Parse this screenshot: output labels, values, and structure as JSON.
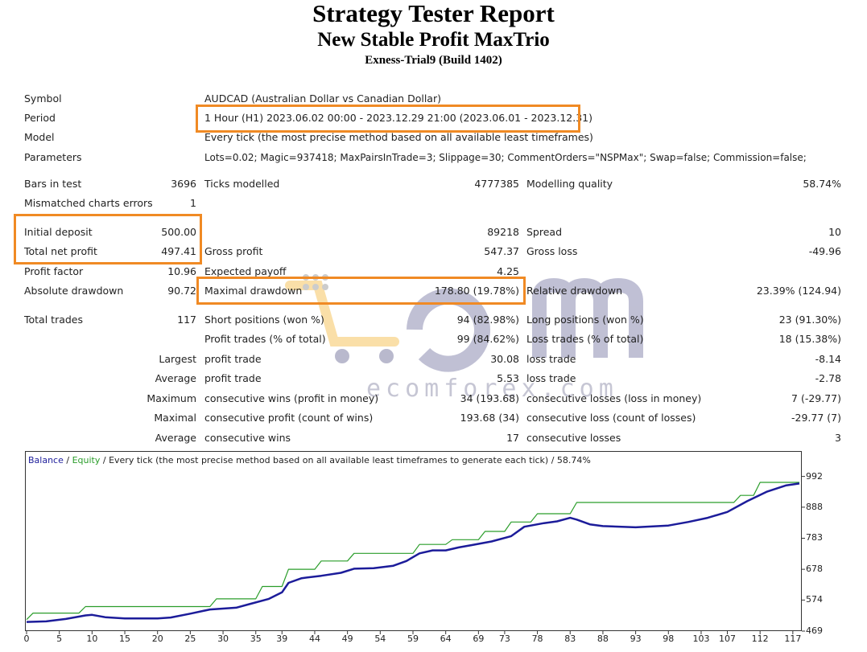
{
  "header": {
    "title": "Strategy Tester Report",
    "subtitle": "New Stable Profit MaxTrio",
    "account": "Exness-Trial9 (Build 1402)"
  },
  "info": {
    "symbol_label": "Symbol",
    "symbol_value": "AUDCAD (Australian Dollar vs Canadian Dollar)",
    "period_label": "Period",
    "period_value": "1 Hour (H1) 2023.06.02 00:00 - 2023.12.29 21:00 (2023.06.01 - 2023.12.31)",
    "model_label": "Model",
    "model_value": "Every tick (the most precise method based on all available least timeframes)",
    "parameters_label": "Parameters",
    "parameters_value": "Lots=0.02; Magic=937418; MaxPairsInTrade=3; Slippage=30; CommentOrders=\"NSPMax\"; Swap=false; Commission=false;"
  },
  "stats": {
    "bars_label": "Bars in test",
    "bars_value": "3696",
    "ticks_label": "Ticks modelled",
    "ticks_value": "4777385",
    "quality_label": "Modelling quality",
    "quality_value": "58.74%",
    "mismatch_label": "Mismatched charts errors",
    "mismatch_value": "1",
    "deposit_label": "Initial deposit",
    "deposit_value": "500.00",
    "mid_value": "89218",
    "spread_label": "Spread",
    "spread_value": "10",
    "netprofit_label": "Total net profit",
    "netprofit_value": "497.41",
    "grossprofit_label": "Gross profit",
    "grossprofit_value": "547.37",
    "grossloss_label": "Gross loss",
    "grossloss_value": "-49.96",
    "pf_label": "Profit factor",
    "pf_value": "10.96",
    "payoff_label": "Expected payoff",
    "payoff_value": "4.25",
    "absdd_label": "Absolute drawdown",
    "absdd_value": "90.72",
    "maxdd_label": "Maximal drawdown",
    "maxdd_value": "178.80 (19.78%)",
    "reldd_label": "Relative drawdown",
    "reldd_value": "23.39% (124.94)",
    "trades_label": "Total trades",
    "trades_value": "117",
    "short_label": "Short positions (won %)",
    "short_value": "94 (82.98%)",
    "long_label": "Long positions (won %)",
    "long_value": "23 (91.30%)",
    "proftrades_label": "Profit trades (% of total)",
    "proftrades_value": "99 (84.62%)",
    "losstrades_label": "Loss trades (% of total)",
    "losstrades_value": "18 (15.38%)",
    "largest_label": "Largest",
    "largest_profit_label": "profit trade",
    "largest_profit_value": "30.08",
    "largest_loss_label": "loss trade",
    "largest_loss_value": "-8.14",
    "average_label": "Average",
    "average_profit_label": "profit trade",
    "average_profit_value": "5.53",
    "average_loss_label": "loss trade",
    "average_loss_value": "-2.78",
    "maximum_label": "Maximum",
    "max_wins_label": "consecutive wins (profit in money)",
    "max_wins_value": "34 (193.68)",
    "max_losses_label": "consecutive losses (loss in money)",
    "max_losses_value": "7 (-29.77)",
    "maximal_label": "Maximal",
    "maximal_profit_label": "consecutive profit (count of wins)",
    "maximal_profit_value": "193.68 (34)",
    "maximal_loss_label": "consecutive loss (count of losses)",
    "maximal_loss_value": "-29.77 (7)",
    "avg2_label": "Average",
    "avg_wins_label": "consecutive wins",
    "avg_wins_value": "17",
    "avg_losses_label": "consecutive losses",
    "avg_losses_value": "3"
  },
  "watermark": {
    "text": "ecomforex.com"
  },
  "chart_caption": {
    "balance": "Balance",
    "sep1": " / ",
    "equity": "Equity",
    "rest": " / Every tick (the most precise method based on all available least timeframes to generate each tick) / 58.74%"
  },
  "colors": {
    "highlight": "#f08a24",
    "balance": "#1c1c9a",
    "equity": "#2a9d2a"
  },
  "chart_data": {
    "type": "line",
    "title": "",
    "xlabel": "",
    "ylabel": "",
    "x_ticks": [
      0,
      5,
      10,
      15,
      20,
      25,
      30,
      35,
      39,
      44,
      49,
      54,
      59,
      64,
      69,
      73,
      78,
      83,
      88,
      93,
      98,
      103,
      107,
      112,
      117
    ],
    "y_ticks": [
      469,
      574,
      678,
      783,
      888,
      992
    ],
    "xlim": [
      0,
      118
    ],
    "ylim": [
      469,
      1010
    ],
    "series": [
      {
        "name": "Balance",
        "points": [
          [
            0,
            500
          ],
          [
            3,
            502
          ],
          [
            6,
            510
          ],
          [
            9,
            522
          ],
          [
            10,
            524
          ],
          [
            12,
            516
          ],
          [
            15,
            512
          ],
          [
            20,
            512
          ],
          [
            22,
            515
          ],
          [
            25,
            528
          ],
          [
            28,
            542
          ],
          [
            32,
            548
          ],
          [
            34,
            560
          ],
          [
            37,
            578
          ],
          [
            39,
            600
          ],
          [
            40,
            632
          ],
          [
            42,
            648
          ],
          [
            45,
            656
          ],
          [
            48,
            666
          ],
          [
            50,
            680
          ],
          [
            53,
            682
          ],
          [
            56,
            690
          ],
          [
            58,
            706
          ],
          [
            60,
            732
          ],
          [
            62,
            742
          ],
          [
            64,
            742
          ],
          [
            66,
            752
          ],
          [
            68,
            760
          ],
          [
            71,
            772
          ],
          [
            74,
            790
          ],
          [
            76,
            822
          ],
          [
            79,
            834
          ],
          [
            81,
            840
          ],
          [
            83,
            852
          ],
          [
            84,
            846
          ],
          [
            86,
            830
          ],
          [
            88,
            824
          ],
          [
            93,
            820
          ],
          [
            98,
            826
          ],
          [
            101,
            838
          ],
          [
            104,
            852
          ],
          [
            107,
            872
          ],
          [
            110,
            908
          ],
          [
            113,
            940
          ],
          [
            116,
            962
          ],
          [
            118,
            968
          ]
        ]
      },
      {
        "name": "Equity",
        "points": [
          [
            0,
            508
          ],
          [
            1,
            530
          ],
          [
            8,
            530
          ],
          [
            9,
            552
          ],
          [
            28,
            552
          ],
          [
            29,
            578
          ],
          [
            35,
            578
          ],
          [
            36,
            620
          ],
          [
            39,
            620
          ],
          [
            40,
            678
          ],
          [
            44,
            678
          ],
          [
            45,
            706
          ],
          [
            49,
            706
          ],
          [
            50,
            732
          ],
          [
            59,
            732
          ],
          [
            60,
            762
          ],
          [
            64,
            762
          ],
          [
            65,
            778
          ],
          [
            69,
            778
          ],
          [
            70,
            806
          ],
          [
            73,
            806
          ],
          [
            74,
            838
          ],
          [
            77,
            838
          ],
          [
            78,
            866
          ],
          [
            83,
            866
          ],
          [
            84,
            904
          ],
          [
            108,
            904
          ],
          [
            109,
            928
          ],
          [
            111,
            928
          ],
          [
            112,
            972
          ],
          [
            118,
            972
          ]
        ]
      }
    ]
  }
}
